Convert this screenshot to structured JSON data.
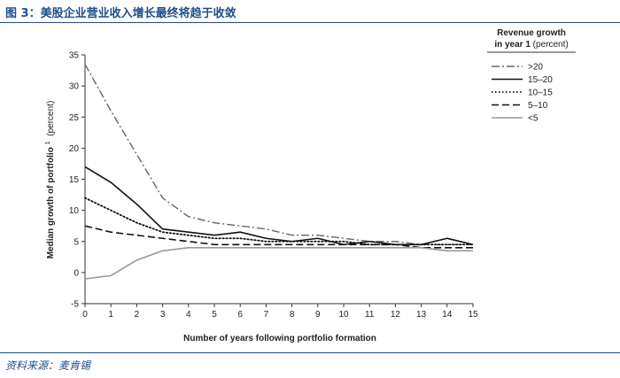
{
  "figure": {
    "title": "图 3：美股企业营业收入增长最终将趋于收敛",
    "source": "资料来源：麦肯锡"
  },
  "chart_data": {
    "type": "line",
    "xlabel": "Number of years following portfolio formation",
    "ylabel": "Median growth of portfolio",
    "ylabel_note": "1",
    "ylabel_unit": "(percent)",
    "xlim": [
      0,
      15
    ],
    "ylim": [
      -5,
      35
    ],
    "x_ticks": [
      "0",
      "1",
      "2",
      "3",
      "4",
      "5",
      "6",
      "7",
      "8",
      "9",
      "10",
      "11",
      "12",
      "13",
      "14",
      "15"
    ],
    "y_ticks": [
      "35",
      "30",
      "25",
      "20",
      "15",
      "10",
      "5",
      "0",
      "-5"
    ],
    "grid": false,
    "legend_placement": "right",
    "legend_title": "Revenue growth",
    "legend_title_line2": "in year 1",
    "legend_title_unit": "(percent)",
    "x": [
      0,
      1,
      2,
      3,
      4,
      5,
      6,
      7,
      8,
      9,
      10,
      11,
      12,
      13,
      14,
      15
    ],
    "series": [
      {
        "name": ">20",
        "color": "#666666",
        "dash": "dashdot",
        "values": [
          33.5,
          26,
          19,
          12,
          9,
          8,
          7.5,
          7,
          6,
          6,
          5.5,
          5,
          5,
          4.5,
          4.5,
          4.5
        ]
      },
      {
        "name": "15–20",
        "color": "#111111",
        "dash": "solid",
        "values": [
          17,
          14.5,
          11,
          7,
          6.5,
          6,
          6.5,
          5.5,
          5,
          5.5,
          4.5,
          5,
          4.5,
          4.5,
          5.5,
          4.5
        ]
      },
      {
        "name": "10–15",
        "color": "#111111",
        "dash": "dotted",
        "values": [
          12,
          10,
          8,
          6.5,
          6,
          5.5,
          5.5,
          5,
          5,
          5,
          5,
          4.5,
          4.5,
          4.5,
          4.5,
          4.5
        ]
      },
      {
        "name": "5–10",
        "color": "#111111",
        "dash": "dashed",
        "values": [
          7.5,
          6.5,
          6,
          5.5,
          5,
          4.5,
          4.5,
          4.5,
          4.5,
          4.5,
          4.5,
          4.5,
          4.5,
          4,
          4,
          4
        ]
      },
      {
        "name": "<5",
        "color": "#999999",
        "dash": "solid",
        "values": [
          -1,
          -0.5,
          2,
          3.5,
          4,
          4,
          4,
          4,
          4,
          4,
          4,
          4,
          4,
          4,
          3.5,
          3.5
        ]
      }
    ]
  }
}
